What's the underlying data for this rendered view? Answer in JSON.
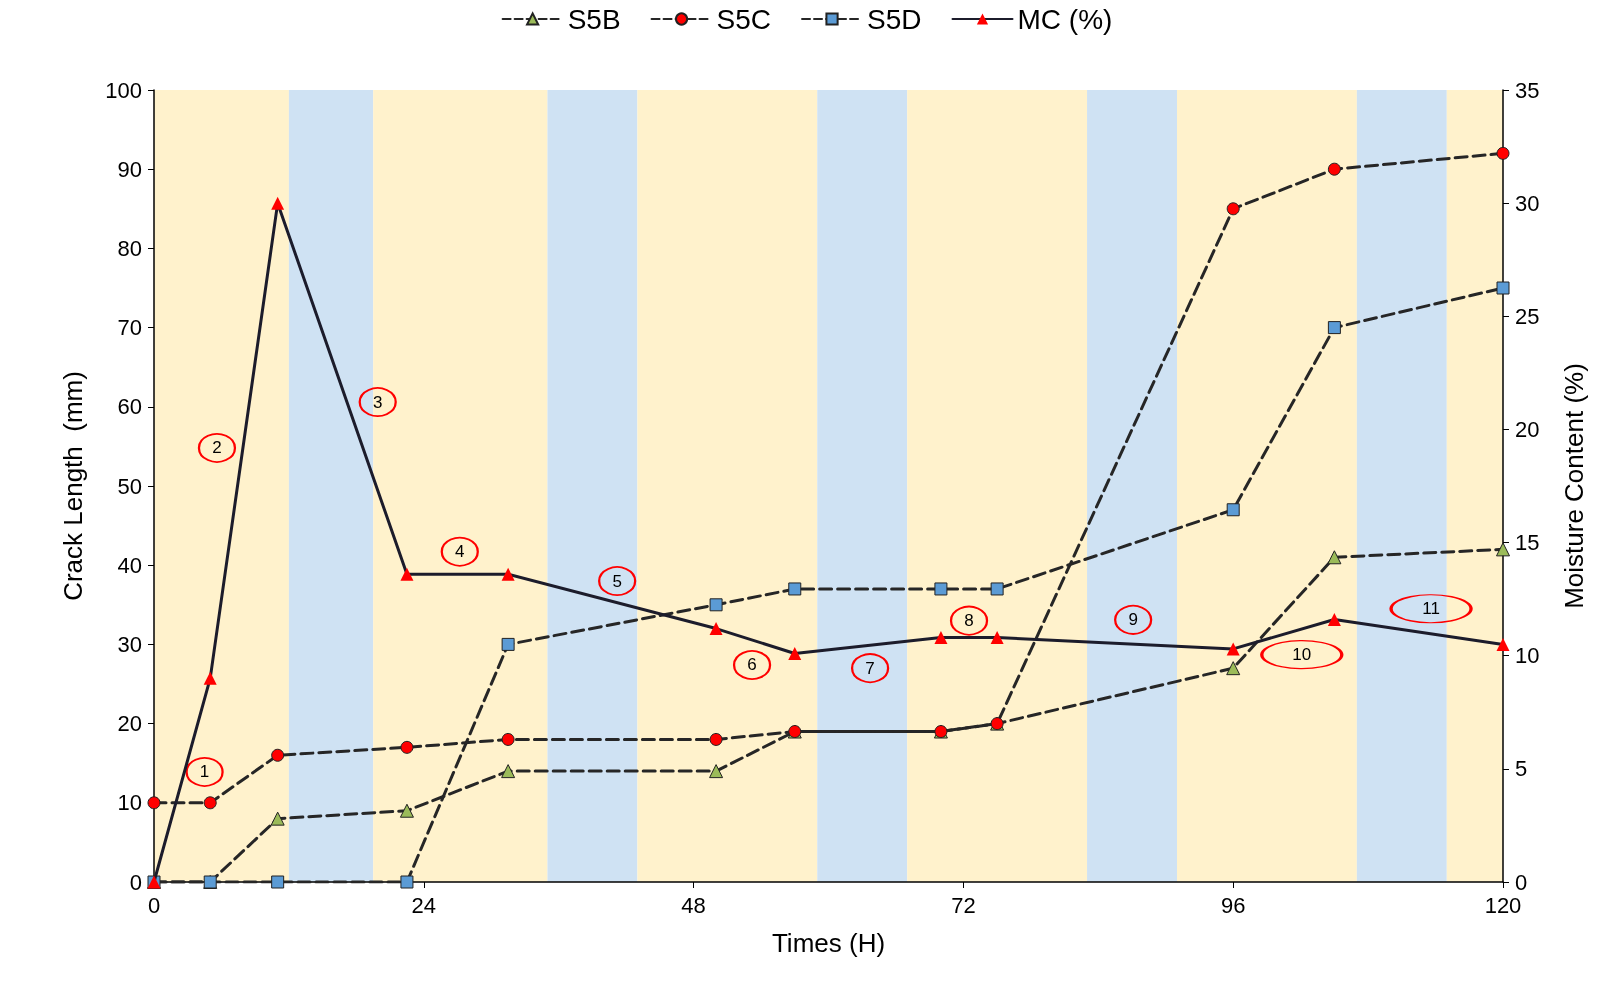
{
  "chart_data": {
    "type": "line",
    "xlabel": "Times (H)",
    "ylabel": "Crack Length  (mm)",
    "y2label": "Moisture Content (%)",
    "xlim": [
      0,
      120
    ],
    "xticks": [
      0,
      24,
      48,
      72,
      96,
      120
    ],
    "ylim": [
      0,
      100
    ],
    "yticks": [
      0,
      10,
      20,
      30,
      40,
      50,
      60,
      70,
      80,
      90,
      100
    ],
    "y2lim": [
      0,
      35
    ],
    "y2ticks": [
      0,
      5,
      10,
      15,
      20,
      25,
      30,
      35
    ],
    "grid": false,
    "legend": "top",
    "series": [
      {
        "name": "S5B",
        "color": "#9bbb59",
        "marker": "triangle",
        "line_style": "dashed",
        "x": [
          0,
          5,
          11,
          22.5,
          31.5,
          50,
          57,
          70,
          75,
          96,
          105,
          120
        ],
        "values": [
          0,
          0,
          8,
          9,
          14,
          14,
          19,
          19,
          20,
          27,
          41,
          42
        ]
      },
      {
        "name": "S5C",
        "color": "#ff0000",
        "marker": "circle",
        "line_style": "dashed",
        "x": [
          0,
          5,
          11,
          22.5,
          31.5,
          50,
          57,
          70,
          75,
          96,
          105,
          120
        ],
        "values": [
          10,
          10,
          16,
          17,
          18,
          18,
          19,
          19,
          20,
          85,
          90,
          92
        ]
      },
      {
        "name": "S5D",
        "color": "#5b9bd5",
        "marker": "square",
        "line_style": "dashed",
        "x": [
          0,
          5,
          11,
          22.5,
          31.5,
          50,
          57,
          70,
          75,
          96,
          105,
          120
        ],
        "values": [
          0,
          0,
          0,
          0,
          30,
          35,
          37,
          37,
          37,
          47,
          70,
          75
        ]
      },
      {
        "name": "MC (%)",
        "color": "#ff0000",
        "marker": "triangle",
        "line_style": "solid",
        "axis": "y2",
        "x": [
          0,
          5,
          11,
          22.5,
          31.5,
          50,
          57,
          70,
          75,
          96,
          105,
          120
        ],
        "values": [
          0,
          9,
          30,
          13.6,
          13.6,
          11.2,
          10.1,
          10.8,
          10.8,
          10.3,
          11.6,
          10.5
        ]
      }
    ],
    "bands": [
      {
        "axis": "x",
        "from": 0,
        "to": 12,
        "color": "#fff2cc"
      },
      {
        "axis": "x",
        "from": 12,
        "to": 19.5,
        "color": "#cfe2f3"
      },
      {
        "axis": "x",
        "from": 19.5,
        "to": 35,
        "color": "#fff2cc"
      },
      {
        "axis": "x",
        "from": 35,
        "to": 43,
        "color": "#cfe2f3"
      },
      {
        "axis": "x",
        "from": 43,
        "to": 59,
        "color": "#fff2cc"
      },
      {
        "axis": "x",
        "from": 59,
        "to": 67,
        "color": "#cfe2f3"
      },
      {
        "axis": "x",
        "from": 67,
        "to": 83,
        "color": "#fff2cc"
      },
      {
        "axis": "x",
        "from": 83,
        "to": 91,
        "color": "#cfe2f3"
      },
      {
        "axis": "x",
        "from": 91,
        "to": 107,
        "color": "#fff2cc"
      },
      {
        "axis": "x",
        "from": 107,
        "to": 115,
        "color": "#cfe2f3"
      },
      {
        "axis": "x",
        "from": 115,
        "to": 120,
        "color": "#fff2cc"
      }
    ],
    "annotations": [
      "1",
      "2",
      "3",
      "4",
      "5",
      "6",
      "7",
      "8",
      "9",
      "10",
      "11"
    ]
  }
}
